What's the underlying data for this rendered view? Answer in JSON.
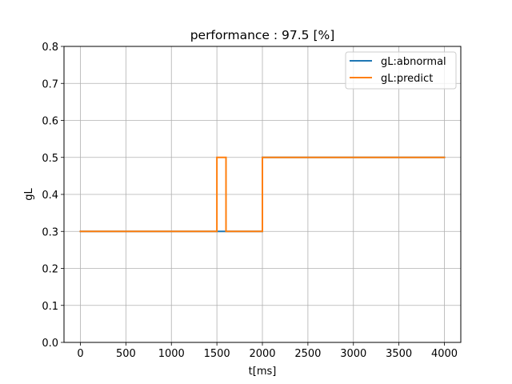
{
  "chart_data": {
    "type": "line",
    "title": "performance : 97.5 [%]",
    "xlabel": "t[ms]",
    "ylabel": "gL",
    "xlim": [
      -180,
      4180
    ],
    "ylim": [
      0.0,
      0.8
    ],
    "xticks": [
      0,
      500,
      1000,
      1500,
      2000,
      2500,
      3000,
      3500,
      4000
    ],
    "xtick_labels": [
      "0",
      "500",
      "1000",
      "1500",
      "2000",
      "2500",
      "3000",
      "3500",
      "4000"
    ],
    "yticks": [
      0.0,
      0.1,
      0.2,
      0.3,
      0.4,
      0.5,
      0.6,
      0.7,
      0.8
    ],
    "ytick_labels": [
      "0.0",
      "0.1",
      "0.2",
      "0.3",
      "0.4",
      "0.5",
      "0.6",
      "0.7",
      "0.8"
    ],
    "grid": true,
    "legend_position": "upper right",
    "series": [
      {
        "name": "gL:abnormal",
        "color": "#1f77b4",
        "x": [
          0,
          2000,
          2000,
          4000
        ],
        "y": [
          0.3,
          0.3,
          0.5,
          0.5
        ]
      },
      {
        "name": "gL:predict",
        "color": "#ff7f0e",
        "x": [
          0,
          1500,
          1500,
          1600,
          1600,
          2000,
          2000,
          4000
        ],
        "y": [
          0.3,
          0.3,
          0.5,
          0.5,
          0.3,
          0.3,
          0.5,
          0.5
        ]
      }
    ]
  }
}
